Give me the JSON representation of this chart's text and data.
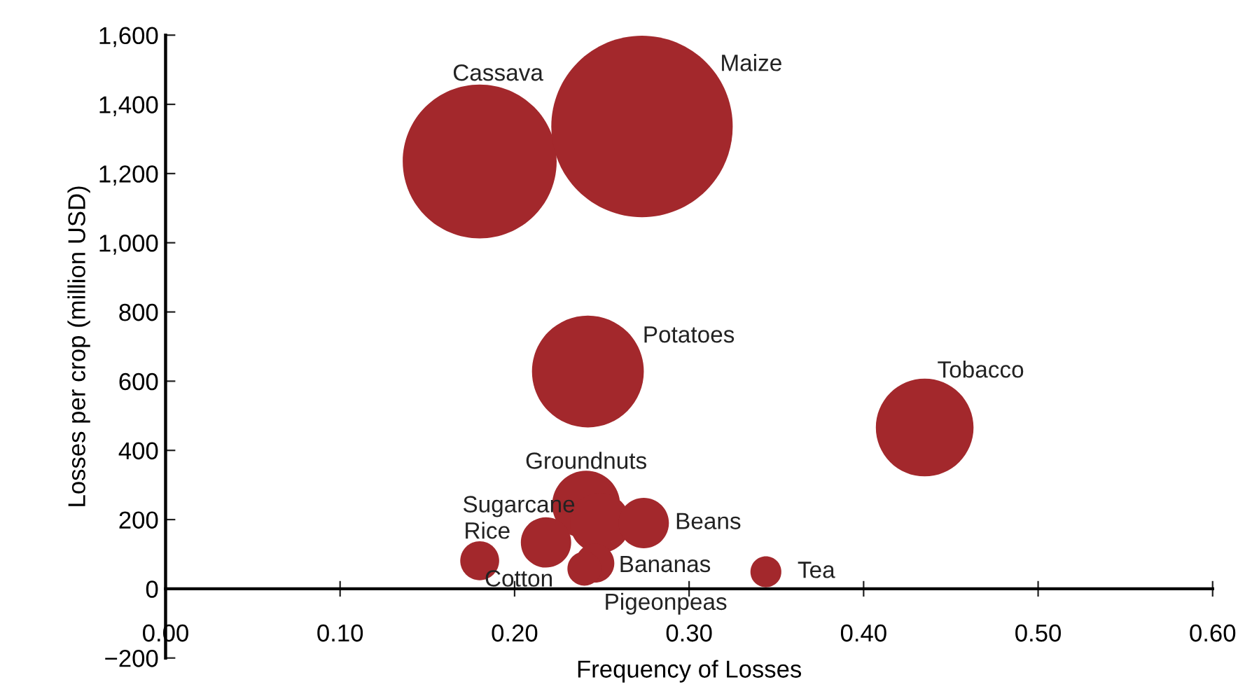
{
  "chart_data": {
    "type": "bubble",
    "xlabel": "Frequency of Losses",
    "ylabel": "Losses per crop (million USD)",
    "xlim": [
      0,
      0.6
    ],
    "xticks": [
      {
        "value": 0,
        "label": "0.00"
      },
      {
        "value": 0.1,
        "label": "0.10"
      },
      {
        "value": 0.2,
        "label": "0.20"
      },
      {
        "value": 0.3,
        "label": "0.30"
      },
      {
        "value": 0.4,
        "label": "0.40"
      },
      {
        "value": 0.5,
        "label": "0.50"
      },
      {
        "value": 0.6,
        "label": "0.60"
      }
    ],
    "ylim": [
      -200,
      1600
    ],
    "yticks": [
      {
        "value": -200,
        "label": "−200"
      },
      0,
      200,
      400,
      600,
      800,
      {
        "value": 1000,
        "label": "1,000"
      },
      {
        "value": 1200,
        "label": "1,200"
      },
      {
        "value": 1400,
        "label": "1,400"
      },
      {
        "value": 1600,
        "label": "1,600"
      }
    ],
    "grid": false,
    "legend": false,
    "series": [
      {
        "name": "Cassava",
        "color": "#a3282c",
        "x": [
          0.18
        ],
        "values": [
          1235
        ],
        "sizes": [
          0.72
        ]
      },
      {
        "name": "Maize",
        "color": "#a3282c",
        "x": [
          0.273
        ],
        "values": [
          1336
        ],
        "sizes": [
          1
        ]
      },
      {
        "name": "Potatoes",
        "color": "#a3282c",
        "x": [
          0.242
        ],
        "values": [
          628
        ],
        "sizes": [
          0.38
        ]
      },
      {
        "name": "Tobacco",
        "color": "#a3282c",
        "x": [
          0.435
        ],
        "values": [
          466
        ],
        "sizes": [
          0.29
        ]
      },
      {
        "name": "Groundnuts",
        "color": "#a3282c",
        "x": [
          0.241
        ],
        "values": [
          243
        ],
        "sizes": [
          0.14
        ]
      },
      {
        "name": "Sugarcane",
        "color": "#a3282c",
        "x": [
          0.249
        ],
        "values": [
          190
        ],
        "sizes": [
          0.11
        ]
      },
      {
        "name": "Beans",
        "color": "#a3282c",
        "x": [
          0.274
        ],
        "values": [
          190
        ],
        "sizes": [
          0.077
        ]
      },
      {
        "name": "Rice",
        "color": "#a3282c",
        "x": [
          0.218
        ],
        "values": [
          134
        ],
        "sizes": [
          0.077
        ]
      },
      {
        "name": "Cotton",
        "color": "#a3282c",
        "x": [
          0.18
        ],
        "values": [
          81
        ],
        "sizes": [
          0.046
        ]
      },
      {
        "name": "Bananas",
        "color": "#a3282c",
        "x": [
          0.246
        ],
        "values": [
          74
        ],
        "sizes": [
          0.046
        ]
      },
      {
        "name": "Pigeonpeas",
        "color": "#a3282c",
        "x": [
          0.24
        ],
        "values": [
          58
        ],
        "sizes": [
          0.035
        ]
      },
      {
        "name": "Tea",
        "color": "#a3282c",
        "x": [
          0.344
        ],
        "values": [
          49
        ],
        "sizes": [
          0.029
        ]
      }
    ]
  }
}
